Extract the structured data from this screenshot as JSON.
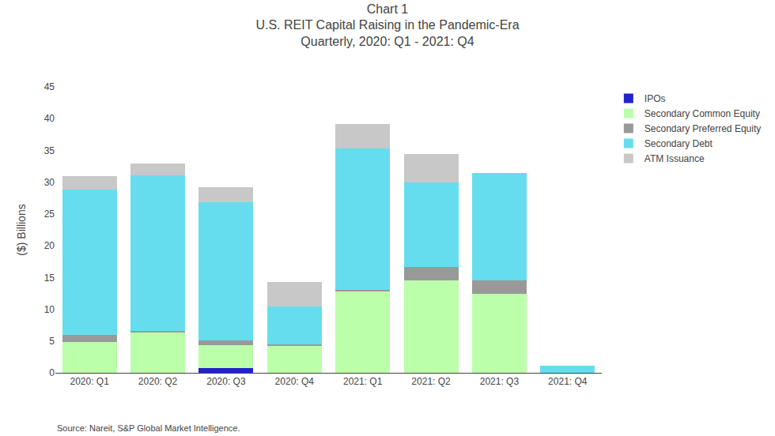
{
  "chart_data": {
    "type": "bar",
    "stacked": true,
    "title": "Chart 1",
    "subtitle": [
      "U.S. REIT Capital Raising in the Pandemic-Era",
      "Quarterly, 2020: Q1 - 2021: Q4"
    ],
    "annotations": [
      "Source: Nareit, S&P Global Market Intelligence."
    ],
    "ylabel": "($) Billions",
    "categories": [
      "2020: Q1",
      "2020: Q2",
      "2020: Q3",
      "2020: Q4",
      "2021: Q1",
      "2021: Q2",
      "2021: Q3",
      "2021: Q4"
    ],
    "series": [
      {
        "name": "IPOs",
        "color": "#2222CC",
        "values": [
          0.0,
          0.0,
          0.7,
          0.0,
          0.0,
          0.0,
          0.0,
          0.0
        ]
      },
      {
        "name": "Secondary Common Equity",
        "color": "#BBFFAA",
        "values": [
          4.8,
          6.3,
          3.7,
          4.2,
          12.8,
          14.5,
          12.4,
          0.0
        ]
      },
      {
        "name": "Secondary Preferred Equity",
        "color": "#999999",
        "values": [
          1.2,
          0.3,
          0.7,
          0.3,
          0.3,
          2.2,
          2.2,
          0.0
        ]
      },
      {
        "name": "Secondary Debt",
        "color": "#66DDEE",
        "values": [
          22.8,
          24.5,
          21.8,
          6.0,
          22.2,
          13.2,
          16.8,
          1.1
        ]
      },
      {
        "name": "ATM Issuance",
        "color": "#C8C8C8",
        "values": [
          2.2,
          1.8,
          2.3,
          3.8,
          3.8,
          4.5,
          0.0,
          0.0
        ]
      }
    ],
    "ylim": [
      0,
      45
    ],
    "yticks": [
      0,
      5,
      10,
      15,
      20,
      25,
      30,
      35,
      40,
      45
    ],
    "grid": false,
    "legend": "right"
  }
}
